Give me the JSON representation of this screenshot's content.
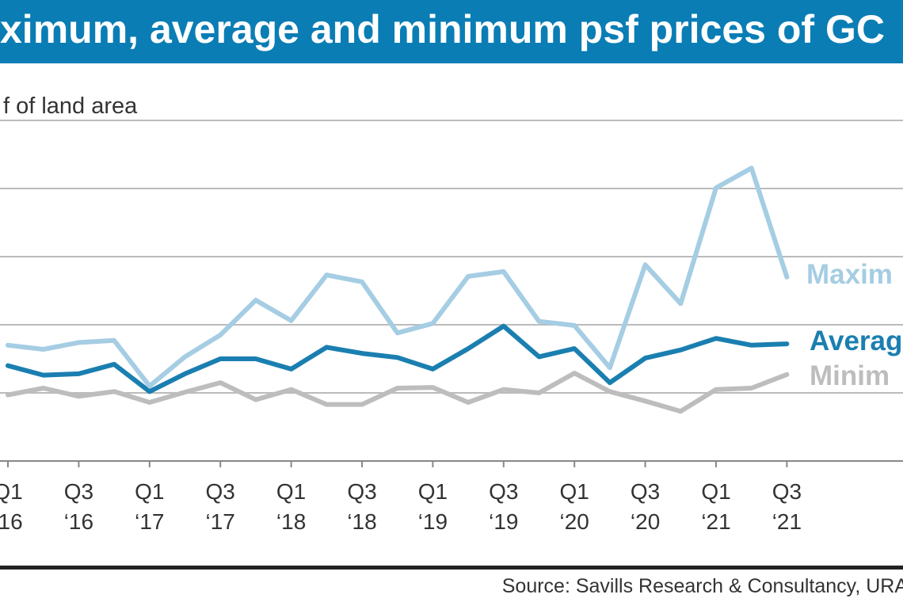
{
  "chart_data": {
    "type": "line",
    "title": "ximum, average and minimum psf prices of GC",
    "ylabel": "f of land area",
    "source": "Source: Savills Research & Consultancy, URA",
    "x": [
      "Q1 '16",
      "Q2 '16",
      "Q3 '16",
      "Q4 '16",
      "Q1 '17",
      "Q2 '17",
      "Q3 '17",
      "Q4 '17",
      "Q1 '18",
      "Q2 '18",
      "Q3 '18",
      "Q4 '18",
      "Q1 '19",
      "Q2 '19",
      "Q3 '19",
      "Q4 '19",
      "Q1 '20",
      "Q2 '20",
      "Q3 '20",
      "Q4 '20",
      "Q1 '21",
      "Q2 '21",
      "Q3 '21"
    ],
    "tick_labels": [
      {
        "q": "Q1",
        "y": "‘16"
      },
      {
        "q": "Q3",
        "y": "‘16"
      },
      {
        "q": "Q1",
        "y": "‘17"
      },
      {
        "q": "Q3",
        "y": "‘17"
      },
      {
        "q": "Q1",
        "y": "‘18"
      },
      {
        "q": "Q3",
        "y": "‘18"
      },
      {
        "q": "Q1",
        "y": "‘19"
      },
      {
        "q": "Q3",
        "y": "‘19"
      },
      {
        "q": "Q1",
        "y": "‘20"
      },
      {
        "q": "Q3",
        "y": "‘20"
      },
      {
        "q": "Q1",
        "y": "‘21"
      },
      {
        "q": "Q3",
        "y": "‘21"
      }
    ],
    "ylim": [
      0,
      5
    ],
    "grid": true,
    "series": [
      {
        "name": "Maxim",
        "color": "#a5cde3",
        "values": [
          1.7,
          1.64,
          1.74,
          1.77,
          1.1,
          1.53,
          1.85,
          2.36,
          2.06,
          2.73,
          2.63,
          1.88,
          2.02,
          2.71,
          2.78,
          2.05,
          1.99,
          1.37,
          2.88,
          2.31,
          4.01,
          4.3,
          2.7
        ]
      },
      {
        "name": "Averag",
        "color": "#1a7fb0",
        "values": [
          1.4,
          1.26,
          1.28,
          1.42,
          1.02,
          1.28,
          1.5,
          1.5,
          1.35,
          1.67,
          1.58,
          1.52,
          1.35,
          1.65,
          1.98,
          1.53,
          1.65,
          1.15,
          1.51,
          1.63,
          1.8,
          1.7,
          1.72
        ]
      },
      {
        "name": "Minim",
        "color": "#bdbdbd",
        "values": [
          0.97,
          1.07,
          0.95,
          1.02,
          0.86,
          1.01,
          1.15,
          0.9,
          1.05,
          0.83,
          0.83,
          1.07,
          1.08,
          0.86,
          1.05,
          1.0,
          1.29,
          1.02,
          0.88,
          0.73,
          1.05,
          1.07,
          1.27
        ]
      }
    ]
  }
}
